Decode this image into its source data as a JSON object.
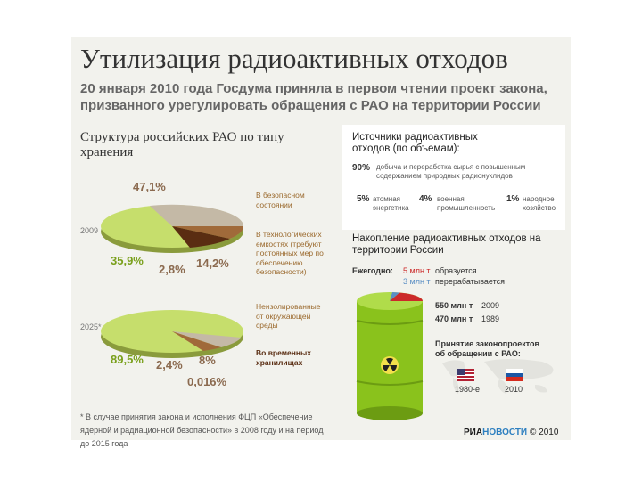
{
  "title": "Утилизация радиоактивных отходов",
  "subtitle": "20 января 2010 года Госдума приняла в первом чтении проект закона, призванного урегулировать обращения с РАО на территории России",
  "structure": {
    "title": "Структура российских РАО по типу хранения",
    "legend": [
      {
        "label": "В безопасном состоянии",
        "color": "#b69d82"
      },
      {
        "label": "В технологических емкостях (требуют постоянных мер по обеспечению безопасности)",
        "color": "#a06a3a"
      },
      {
        "label": "Неизолированные от окружающей среды",
        "color": "#c4b9a6"
      },
      {
        "label": "Во временных хранилищах",
        "color": "#5a2d12"
      }
    ],
    "pie_2009": {
      "year": "2009",
      "values": {
        "a": "47,1%",
        "b": "35,9%",
        "c": "2,8%",
        "d": "14,2%"
      }
    },
    "pie_2025": {
      "year": "2025*",
      "values": {
        "a": "89,5%",
        "b": "2,4%",
        "c": "8%",
        "d": "0,016%"
      }
    }
  },
  "sources": {
    "title": "Источники радиоактивных отходов (по объемам):",
    "items": [
      {
        "pct": "90%",
        "text": "добыча и переработка сырья с повышенным содержанием природных радионуклидов"
      },
      {
        "pct": "5%",
        "text": "атомная энергетика"
      },
      {
        "pct": "4%",
        "text": "военная промышленность"
      },
      {
        "pct": "1%",
        "text": "народное хозяйство"
      }
    ]
  },
  "accumulation": {
    "title": "Накопление радиоактивных отходов на территории России",
    "yearly_label": "Ежегодно:",
    "formed_value": "5 млн т",
    "formed_text": "образуется",
    "processed_value": "3 млн т",
    "processed_text": "перерабатывается",
    "rows": [
      {
        "value": "550 млн т",
        "year": "2009"
      },
      {
        "value": "470 млн т",
        "year": "1989"
      }
    ]
  },
  "laws": {
    "title": "Принятие законопроектов об обращении с РАО:",
    "usa": "1980-е",
    "russia": "2010"
  },
  "footnote": "* В случае принятия закона и исполнения ФЦП «Обеспечение ядерной и радиационной безопасности» в 2008 году и на период до 2015 года",
  "brand": {
    "part1": "РИА",
    "part2": "НОВОСТИ",
    "copyright": "© 2010"
  },
  "colors": {
    "green": "#c6de6c",
    "accent_red": "#cc2a2a",
    "accent_blue": "#5b8fc4",
    "barrel": "#8ac21c"
  }
}
